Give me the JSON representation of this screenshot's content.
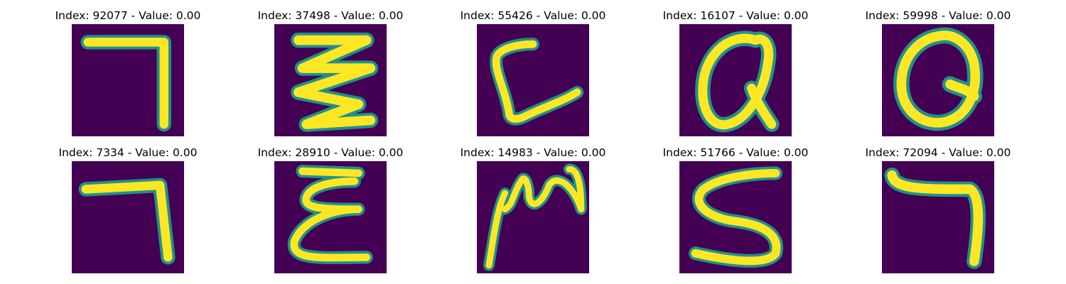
{
  "figure": {
    "background_color": "#ffffff",
    "colormap": {
      "name": "viridis",
      "low": "#440154",
      "mid": "#21918c",
      "high": "#fde725"
    }
  },
  "panels": [
    {
      "title": "Index: 92077 - Value: 0.00",
      "glyph": "7-like stroke"
    },
    {
      "title": "Index: 37498 - Value: 0.00",
      "glyph": "zigzag stroke"
    },
    {
      "title": "Index: 55426 - Value: 0.00",
      "glyph": "L-like stroke"
    },
    {
      "title": "Index: 16107 - Value: 0.00",
      "glyph": "Q-like loop"
    },
    {
      "title": "Index: 59998 - Value: 0.00",
      "glyph": "Q-like loop"
    },
    {
      "title": "Index: 7334 - Value: 0.00",
      "glyph": "7-like stroke"
    },
    {
      "title": "Index: 28910 - Value: 0.00",
      "glyph": "E-like stroke"
    },
    {
      "title": "Index: 14983 - Value: 0.00",
      "glyph": "N-like stroke"
    },
    {
      "title": "Index: 51766 - Value: 0.00",
      "glyph": "S-like stroke"
    },
    {
      "title": "Index: 72094 - Value: 0.00",
      "glyph": "7-like stroke"
    }
  ]
}
